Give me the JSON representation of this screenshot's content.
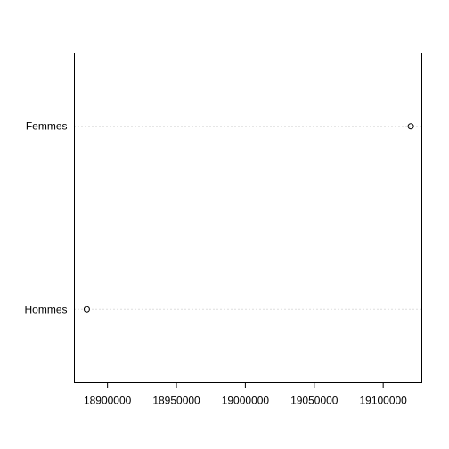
{
  "chart_data": {
    "type": "scatter",
    "title": "",
    "xlabel": "",
    "ylabel": "",
    "categories": [
      "Hommes",
      "Femmes"
    ],
    "values": [
      18885000,
      19120000
    ],
    "xlim": [
      18876000,
      19128000
    ],
    "x_ticks": [
      18900000,
      18950000,
      19000000,
      19050000,
      19100000
    ],
    "x_tick_labels": [
      "18900000",
      "18950000",
      "19000000",
      "19050000",
      "19100000"
    ],
    "grid": "dotted horizontal guide lines",
    "legend": "none",
    "colors": {
      "point": "#000000",
      "guide": "#bebebe",
      "frame": "#000000"
    }
  }
}
